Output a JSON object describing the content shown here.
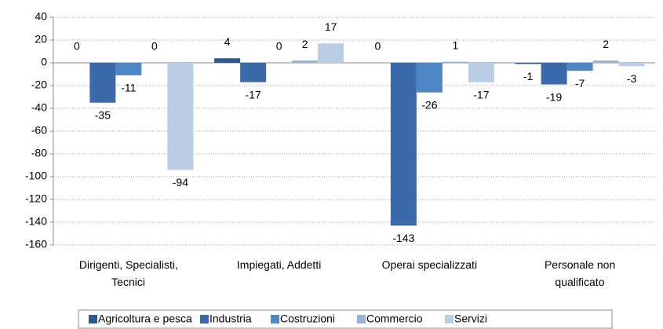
{
  "chart_data": {
    "type": "bar",
    "categories": [
      "Dirigenti, Specialisti, Tecnici",
      "Impiegati, Addetti",
      "Operai specializzati",
      "Personale non qualificato"
    ],
    "series": [
      {
        "name": "Agricoltura e pesca",
        "color": "#2f5a8e",
        "values": [
          0,
          4,
          0,
          -1
        ]
      },
      {
        "name": "Industria",
        "color": "#3b6aaa",
        "values": [
          -35,
          -17,
          -143,
          -19
        ]
      },
      {
        "name": "Costruzioni",
        "color": "#4f86c6",
        "values": [
          -11,
          0,
          -26,
          -7
        ]
      },
      {
        "name": "Commercio",
        "color": "#95b3d7",
        "values": [
          0,
          2,
          1,
          2
        ]
      },
      {
        "name": "Servizi",
        "color": "#b9cde5",
        "values": [
          -94,
          17,
          -17,
          -3
        ]
      }
    ],
    "ylim": [
      -160,
      40
    ],
    "yticks": [
      40,
      20,
      0,
      -20,
      -40,
      -60,
      -80,
      -100,
      -120,
      -140,
      -160
    ],
    "grid": true,
    "legend": "bottom"
  }
}
